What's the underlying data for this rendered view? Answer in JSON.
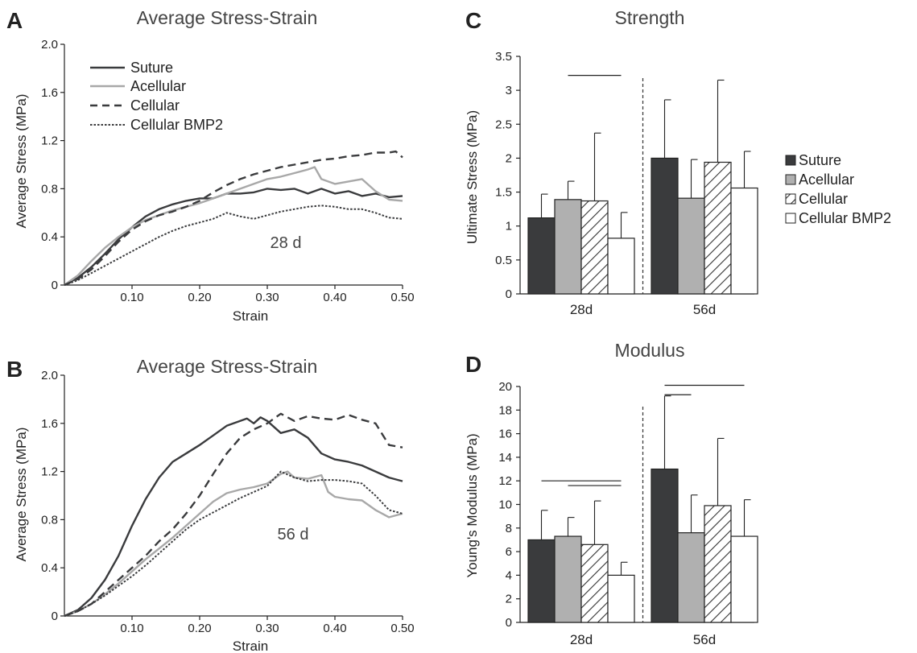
{
  "legend_labels": [
    "Suture",
    "Acellular",
    "Cellular",
    "Cellular BMP2"
  ],
  "colors": {
    "suture": "#3a3b3d",
    "acellular": "#a8a8a8",
    "cellular": "#3a3b3d",
    "bmp2": "#3a3b3d",
    "bar_suture": "#3a3b3d",
    "bar_acellular": "#b0b0b0",
    "bar_cellular_hatch": "#333333",
    "bar_bmp2": "#ffffff"
  },
  "chart_data": [
    {
      "id": "A",
      "letter": "A",
      "type": "line",
      "title": "Average Stress-Strain",
      "xlabel": "Strain",
      "ylabel": "Average Stress (MPa)",
      "annotation": "28 d",
      "xlim": [
        0,
        0.5
      ],
      "ylim": [
        0,
        2.0
      ],
      "xticks": [
        0.1,
        0.2,
        0.3,
        0.4,
        0.5
      ],
      "xtick_labels": [
        "0.10",
        "0.20",
        "0.30",
        "0.40",
        "0.50"
      ],
      "yticks": [
        0,
        0.4,
        0.8,
        1.2,
        1.6,
        2.0
      ],
      "ytick_labels": [
        "0",
        "0.4",
        "0.8",
        "1.2",
        "1.6",
        "2.0"
      ],
      "legend_position": "top-left",
      "series": [
        {
          "name": "Suture",
          "key": "suture",
          "dash": "solid",
          "x": [
            0,
            0.02,
            0.04,
            0.06,
            0.08,
            0.1,
            0.12,
            0.14,
            0.16,
            0.18,
            0.2,
            0.22,
            0.24,
            0.26,
            0.28,
            0.3,
            0.32,
            0.34,
            0.36,
            0.38,
            0.4,
            0.42,
            0.44,
            0.46,
            0.48,
            0.5
          ],
          "y": [
            0,
            0.06,
            0.15,
            0.26,
            0.38,
            0.48,
            0.57,
            0.63,
            0.67,
            0.7,
            0.72,
            0.72,
            0.76,
            0.76,
            0.77,
            0.8,
            0.79,
            0.8,
            0.76,
            0.8,
            0.76,
            0.78,
            0.74,
            0.76,
            0.73,
            0.74
          ]
        },
        {
          "name": "Acellular",
          "key": "acellular",
          "dash": "solid",
          "x": [
            0,
            0.02,
            0.04,
            0.06,
            0.08,
            0.1,
            0.12,
            0.14,
            0.16,
            0.18,
            0.2,
            0.22,
            0.24,
            0.26,
            0.28,
            0.3,
            0.32,
            0.34,
            0.36,
            0.37,
            0.38,
            0.4,
            0.42,
            0.44,
            0.46,
            0.48,
            0.5
          ],
          "y": [
            0,
            0.08,
            0.2,
            0.31,
            0.4,
            0.48,
            0.54,
            0.58,
            0.62,
            0.65,
            0.68,
            0.72,
            0.76,
            0.8,
            0.84,
            0.88,
            0.9,
            0.93,
            0.96,
            0.98,
            0.88,
            0.84,
            0.86,
            0.88,
            0.78,
            0.71,
            0.7
          ]
        },
        {
          "name": "Cellular",
          "key": "cellular",
          "dash": "dashed",
          "x": [
            0,
            0.02,
            0.04,
            0.06,
            0.08,
            0.1,
            0.12,
            0.14,
            0.16,
            0.18,
            0.2,
            0.22,
            0.24,
            0.26,
            0.28,
            0.3,
            0.32,
            0.34,
            0.36,
            0.38,
            0.4,
            0.42,
            0.44,
            0.46,
            0.48,
            0.49,
            0.5
          ],
          "y": [
            0,
            0.05,
            0.13,
            0.24,
            0.36,
            0.46,
            0.53,
            0.58,
            0.61,
            0.65,
            0.7,
            0.77,
            0.83,
            0.88,
            0.92,
            0.95,
            0.98,
            1.0,
            1.02,
            1.04,
            1.05,
            1.07,
            1.08,
            1.1,
            1.1,
            1.11,
            1.06
          ]
        },
        {
          "name": "Cellular BMP2",
          "key": "bmp2",
          "dash": "dotted",
          "x": [
            0,
            0.02,
            0.04,
            0.06,
            0.08,
            0.1,
            0.12,
            0.14,
            0.16,
            0.18,
            0.2,
            0.22,
            0.24,
            0.26,
            0.28,
            0.3,
            0.32,
            0.34,
            0.36,
            0.38,
            0.4,
            0.42,
            0.44,
            0.46,
            0.48,
            0.5
          ],
          "y": [
            0,
            0.04,
            0.1,
            0.16,
            0.22,
            0.28,
            0.34,
            0.4,
            0.45,
            0.49,
            0.52,
            0.55,
            0.6,
            0.57,
            0.55,
            0.58,
            0.61,
            0.63,
            0.65,
            0.66,
            0.65,
            0.63,
            0.63,
            0.6,
            0.56,
            0.55
          ]
        }
      ]
    },
    {
      "id": "B",
      "letter": "B",
      "type": "line",
      "title": "Average Stress-Strain",
      "xlabel": "Strain",
      "ylabel": "Average Stress (MPa)",
      "annotation": "56 d",
      "xlim": [
        0,
        0.5
      ],
      "ylim": [
        0,
        2.0
      ],
      "xticks": [
        0.1,
        0.2,
        0.3,
        0.4,
        0.5
      ],
      "xtick_labels": [
        "0.10",
        "0.20",
        "0.30",
        "0.40",
        "0.50"
      ],
      "yticks": [
        0,
        0.4,
        0.8,
        1.2,
        1.6,
        2.0
      ],
      "ytick_labels": [
        "0",
        "0.4",
        "0.8",
        "1.2",
        "1.6",
        "2.0"
      ],
      "series": [
        {
          "name": "Suture",
          "key": "suture",
          "dash": "solid",
          "x": [
            0,
            0.02,
            0.04,
            0.06,
            0.08,
            0.1,
            0.12,
            0.14,
            0.16,
            0.18,
            0.2,
            0.22,
            0.24,
            0.26,
            0.27,
            0.28,
            0.29,
            0.3,
            0.32,
            0.34,
            0.36,
            0.38,
            0.4,
            0.42,
            0.44,
            0.46,
            0.48,
            0.5
          ],
          "y": [
            0,
            0.05,
            0.15,
            0.3,
            0.5,
            0.75,
            0.97,
            1.15,
            1.28,
            1.35,
            1.42,
            1.5,
            1.58,
            1.62,
            1.64,
            1.6,
            1.65,
            1.62,
            1.52,
            1.55,
            1.48,
            1.35,
            1.3,
            1.28,
            1.25,
            1.2,
            1.15,
            1.12
          ]
        },
        {
          "name": "Acellular",
          "key": "acellular",
          "dash": "solid",
          "x": [
            0,
            0.02,
            0.04,
            0.06,
            0.08,
            0.1,
            0.12,
            0.14,
            0.16,
            0.18,
            0.2,
            0.22,
            0.24,
            0.26,
            0.28,
            0.3,
            0.32,
            0.33,
            0.34,
            0.36,
            0.38,
            0.39,
            0.4,
            0.42,
            0.44,
            0.46,
            0.48,
            0.5
          ],
          "y": [
            0,
            0.04,
            0.1,
            0.18,
            0.27,
            0.37,
            0.47,
            0.56,
            0.65,
            0.75,
            0.85,
            0.95,
            1.02,
            1.05,
            1.07,
            1.1,
            1.18,
            1.2,
            1.15,
            1.14,
            1.17,
            1.03,
            0.99,
            0.97,
            0.96,
            0.88,
            0.82,
            0.85
          ]
        },
        {
          "name": "Cellular",
          "key": "cellular",
          "dash": "dashed",
          "x": [
            0,
            0.02,
            0.04,
            0.06,
            0.08,
            0.1,
            0.12,
            0.14,
            0.16,
            0.18,
            0.2,
            0.22,
            0.24,
            0.26,
            0.28,
            0.3,
            0.32,
            0.34,
            0.36,
            0.38,
            0.4,
            0.42,
            0.44,
            0.46,
            0.48,
            0.5
          ],
          "y": [
            0,
            0.04,
            0.1,
            0.2,
            0.3,
            0.4,
            0.5,
            0.62,
            0.72,
            0.85,
            1.0,
            1.18,
            1.35,
            1.48,
            1.55,
            1.6,
            1.68,
            1.62,
            1.66,
            1.64,
            1.63,
            1.67,
            1.63,
            1.6,
            1.42,
            1.4
          ]
        },
        {
          "name": "Cellular BMP2",
          "key": "bmp2",
          "dash": "dotted",
          "x": [
            0,
            0.02,
            0.04,
            0.06,
            0.08,
            0.1,
            0.12,
            0.14,
            0.16,
            0.18,
            0.2,
            0.22,
            0.24,
            0.26,
            0.28,
            0.3,
            0.32,
            0.34,
            0.36,
            0.38,
            0.4,
            0.42,
            0.44,
            0.46,
            0.48,
            0.5
          ],
          "y": [
            0,
            0.04,
            0.1,
            0.17,
            0.25,
            0.33,
            0.42,
            0.52,
            0.62,
            0.72,
            0.8,
            0.86,
            0.92,
            0.98,
            1.03,
            1.08,
            1.2,
            1.15,
            1.12,
            1.13,
            1.13,
            1.12,
            1.1,
            1.0,
            0.88,
            0.85
          ]
        }
      ]
    },
    {
      "id": "C",
      "letter": "C",
      "type": "bar",
      "title": "Strength",
      "ylabel": "Ultimate Stress (MPa)",
      "categories": [
        "28d",
        "56d"
      ],
      "ylim": [
        0,
        3.5
      ],
      "yticks": [
        0,
        0.5,
        1,
        1.5,
        2,
        2.5,
        3,
        3.5
      ],
      "ytick_labels": [
        "0",
        "0.5",
        "1",
        "1.5",
        "2",
        "2.5",
        "3",
        "3.5"
      ],
      "legend_position": "right",
      "series": [
        {
          "name": "Suture",
          "key": "suture",
          "values": [
            1.12,
            2.0
          ],
          "errors": [
            0.35,
            0.86
          ]
        },
        {
          "name": "Acellular",
          "key": "acellular",
          "values": [
            1.39,
            1.41
          ],
          "errors": [
            0.27,
            0.57
          ]
        },
        {
          "name": "Cellular",
          "key": "cellular",
          "values": [
            1.37,
            1.94
          ],
          "errors": [
            1.0,
            1.21
          ]
        },
        {
          "name": "Cellular BMP2",
          "key": "bmp2",
          "values": [
            0.82,
            1.56
          ],
          "errors": [
            0.38,
            0.54
          ]
        }
      ],
      "sig_bars": [
        {
          "from": [
            0,
            1
          ],
          "to": [
            0,
            3
          ],
          "y": 3.22
        }
      ]
    },
    {
      "id": "D",
      "letter": "D",
      "type": "bar",
      "title": "Modulus",
      "ylabel": "Young's Modulus (MPa)",
      "categories": [
        "28d",
        "56d"
      ],
      "ylim": [
        0,
        20
      ],
      "yticks": [
        0,
        2,
        4,
        6,
        8,
        10,
        12,
        14,
        16,
        18,
        20
      ],
      "ytick_labels": [
        "0",
        "2",
        "4",
        "6",
        "8",
        "10",
        "12",
        "14",
        "16",
        "18",
        "20"
      ],
      "series": [
        {
          "name": "Suture",
          "key": "suture",
          "values": [
            7.0,
            13.0
          ],
          "errors": [
            2.5,
            6.2
          ]
        },
        {
          "name": "Acellular",
          "key": "acellular",
          "values": [
            7.3,
            7.6
          ],
          "errors": [
            1.6,
            3.2
          ]
        },
        {
          "name": "Cellular",
          "key": "cellular",
          "values": [
            6.6,
            9.9
          ],
          "errors": [
            3.7,
            5.7
          ]
        },
        {
          "name": "Cellular BMP2",
          "key": "bmp2",
          "values": [
            4.0,
            7.3
          ],
          "errors": [
            1.1,
            3.1
          ]
        }
      ],
      "sig_bars": [
        {
          "from": [
            0,
            0
          ],
          "to": [
            0,
            3
          ],
          "y": 12.0
        },
        {
          "from": [
            0,
            1
          ],
          "to": [
            0,
            3
          ],
          "y": 11.6
        },
        {
          "from": [
            1,
            0
          ],
          "to": [
            1,
            1
          ],
          "y": 19.3
        },
        {
          "from": [
            1,
            0
          ],
          "to": [
            1,
            3
          ],
          "y": 20.1
        }
      ]
    }
  ]
}
